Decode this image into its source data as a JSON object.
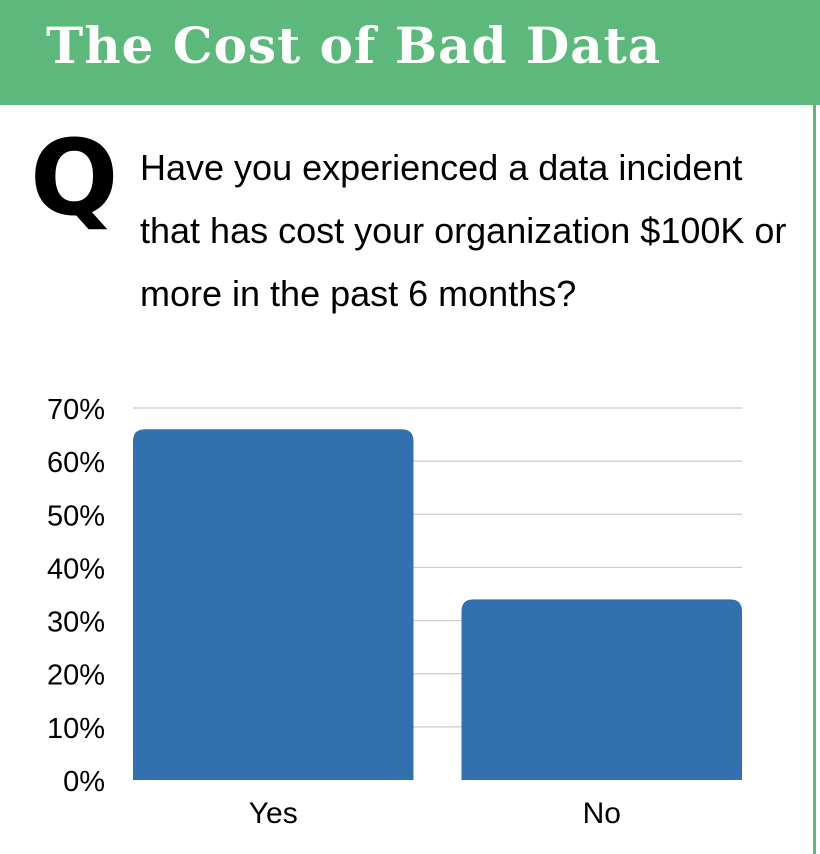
{
  "header": {
    "title": "The Cost of Bad Data"
  },
  "question": {
    "marker": "Q",
    "text": "Have you experienced a data incident that has cost your organization $100K or more in the past 6 months?"
  },
  "colors": {
    "header_bg": "#5db97b",
    "bar": "#3271ae",
    "grid": "#cccccc"
  },
  "chart_data": {
    "type": "bar",
    "categories": [
      "Yes",
      "No"
    ],
    "values": [
      66,
      34
    ],
    "ylim": [
      0,
      70
    ],
    "yticks": [
      "0%",
      "10%",
      "20%",
      "30%",
      "40%",
      "50%",
      "60%",
      "70%"
    ],
    "ytick_values": [
      0,
      10,
      20,
      30,
      40,
      50,
      60,
      70
    ],
    "grid": true,
    "legend": "none"
  }
}
